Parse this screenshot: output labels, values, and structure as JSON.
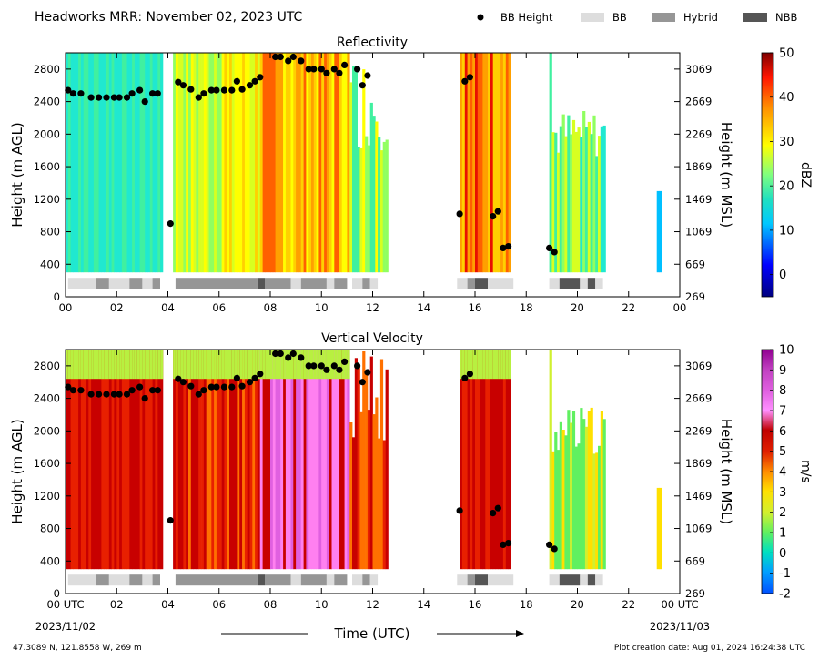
{
  "header": {
    "title": "Headworks MRR:  November 02, 2023 UTC",
    "legend": [
      {
        "label": "BB Height",
        "kind": "dot",
        "color": "#000000"
      },
      {
        "label": "BB",
        "kind": "patch",
        "color": "#dddddd"
      },
      {
        "label": "Hybrid",
        "kind": "patch",
        "color": "#969696"
      },
      {
        "label": "NBB",
        "kind": "patch",
        "color": "#555555"
      }
    ]
  },
  "footer": {
    "coords": "47.3089 N, 121.8558 W, 269 m",
    "created": "Plot creation date: Aug 01, 2024 16:24:38 UTC",
    "xlabel": "Time (UTC)",
    "date_start": "2023/11/02",
    "date_end": "2023/11/03"
  },
  "chart_data": [
    {
      "type": "heatmap",
      "title": "Reflectivity",
      "ylabel": "Height (m AGL)",
      "ylabel_right": "Height (m MSL)",
      "xticks": [
        "00",
        "02",
        "04",
        "06",
        "08",
        "10",
        "12",
        "14",
        "16",
        "18",
        "20",
        "22",
        "00"
      ],
      "yticks": [
        0,
        400,
        800,
        1200,
        1600,
        2000,
        2400,
        2800
      ],
      "yticks_right": [
        269,
        669,
        1069,
        1469,
        1869,
        2269,
        2669,
        3069
      ],
      "xlim": [
        0,
        24
      ],
      "ylim": [
        0,
        3000
      ],
      "colorbar": {
        "label": "dBZ",
        "ticks": [
          0,
          10,
          20,
          30,
          40,
          50
        ],
        "range": [
          -5,
          50
        ]
      },
      "data_coverage_hours": [
        [
          0,
          3.8
        ],
        [
          4.2,
          12.6
        ],
        [
          15.4,
          17.4
        ],
        [
          18.9,
          21.1
        ],
        [
          23.1,
          23.3
        ]
      ],
      "bb_height": {
        "x": [
          0.1,
          0.3,
          0.6,
          1.0,
          1.3,
          1.6,
          1.9,
          2.1,
          2.4,
          2.6,
          2.9,
          3.1,
          3.4,
          3.6,
          4.1,
          4.4,
          4.6,
          4.9,
          5.2,
          5.4,
          5.7,
          5.9,
          6.2,
          6.5,
          6.7,
          6.9,
          7.2,
          7.4,
          7.6,
          8.2,
          8.4,
          8.7,
          8.9,
          9.2,
          9.5,
          9.7,
          10.0,
          10.2,
          10.5,
          10.7,
          10.9,
          11.4,
          11.6,
          11.8,
          15.4,
          15.6,
          15.8,
          16.7,
          16.9,
          17.1,
          17.3,
          18.9,
          19.1
        ],
        "y": [
          2540,
          2500,
          2500,
          2450,
          2450,
          2450,
          2450,
          2450,
          2450,
          2500,
          2540,
          2400,
          2500,
          2500,
          900,
          2640,
          2600,
          2550,
          2450,
          2500,
          2540,
          2540,
          2540,
          2540,
          2650,
          2550,
          2600,
          2650,
          2700,
          2950,
          2950,
          2900,
          2950,
          2900,
          2800,
          2800,
          2800,
          2750,
          2800,
          2750,
          2850,
          2800,
          2600,
          2720,
          1020,
          2650,
          2700,
          990,
          1050,
          600,
          620,
          600,
          550
        ]
      },
      "bb_classification": [
        {
          "start": 0.1,
          "end": 1.2,
          "class": "BB"
        },
        {
          "start": 1.2,
          "end": 1.7,
          "class": "Hybrid"
        },
        {
          "start": 1.7,
          "end": 2.5,
          "class": "BB"
        },
        {
          "start": 2.5,
          "end": 3.0,
          "class": "Hybrid"
        },
        {
          "start": 3.0,
          "end": 3.4,
          "class": "BB"
        },
        {
          "start": 3.4,
          "end": 3.7,
          "class": "Hybrid"
        },
        {
          "start": 4.3,
          "end": 7.5,
          "class": "Hybrid"
        },
        {
          "start": 7.5,
          "end": 7.8,
          "class": "NBB"
        },
        {
          "start": 7.8,
          "end": 8.8,
          "class": "Hybrid"
        },
        {
          "start": 8.8,
          "end": 9.2,
          "class": "BB"
        },
        {
          "start": 9.2,
          "end": 10.2,
          "class": "Hybrid"
        },
        {
          "start": 10.2,
          "end": 10.5,
          "class": "BB"
        },
        {
          "start": 10.5,
          "end": 11.0,
          "class": "Hybrid"
        },
        {
          "start": 11.2,
          "end": 11.6,
          "class": "BB"
        },
        {
          "start": 11.6,
          "end": 11.9,
          "class": "Hybrid"
        },
        {
          "start": 11.9,
          "end": 12.2,
          "class": "BB"
        },
        {
          "start": 15.3,
          "end": 15.7,
          "class": "BB"
        },
        {
          "start": 15.7,
          "end": 16.0,
          "class": "Hybrid"
        },
        {
          "start": 16.0,
          "end": 16.5,
          "class": "NBB"
        },
        {
          "start": 16.5,
          "end": 17.5,
          "class": "BB"
        },
        {
          "start": 18.9,
          "end": 19.3,
          "class": "BB"
        },
        {
          "start": 19.3,
          "end": 20.1,
          "class": "NBB"
        },
        {
          "start": 20.1,
          "end": 20.4,
          "class": "BB"
        },
        {
          "start": 20.4,
          "end": 20.7,
          "class": "NBB"
        },
        {
          "start": 20.7,
          "end": 21.0,
          "class": "BB"
        }
      ]
    },
    {
      "type": "heatmap",
      "title": "Vertical Velocity",
      "ylabel": "Height (m AGL)",
      "ylabel_right": "Height (m MSL)",
      "xticks": [
        "00 UTC",
        "02",
        "04",
        "06",
        "08",
        "10",
        "12",
        "14",
        "16",
        "18",
        "20",
        "22",
        "00 UTC"
      ],
      "yticks": [
        0,
        400,
        800,
        1200,
        1600,
        2000,
        2400,
        2800
      ],
      "yticks_right": [
        269,
        669,
        1069,
        1469,
        1869,
        2269,
        2669,
        3069
      ],
      "xlim": [
        0,
        24
      ],
      "ylim": [
        0,
        3000
      ],
      "colorbar": {
        "label": "m/s",
        "ticks": [
          -2,
          -1,
          0,
          1,
          2,
          3,
          4,
          5,
          6,
          7,
          8,
          9,
          10
        ],
        "range": [
          -2,
          10
        ]
      }
    }
  ]
}
